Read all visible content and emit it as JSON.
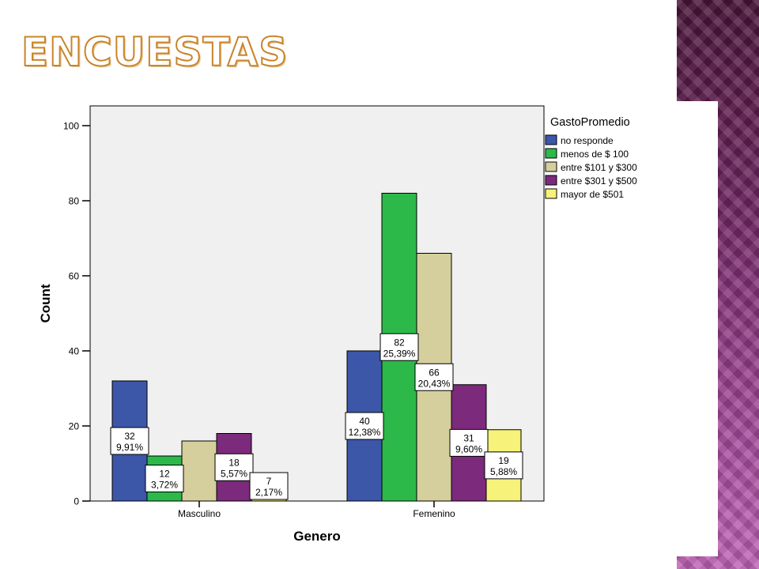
{
  "slide": {
    "title": "ENCUESTAS"
  },
  "chart_data": {
    "type": "bar",
    "xlabel": "Genero",
    "ylabel": "Count",
    "ylim": [
      0,
      100
    ],
    "yticks": [
      0,
      20,
      40,
      60,
      80,
      100
    ],
    "grid": false,
    "legend_position": "top-right",
    "legend_title": "GastoPromedio",
    "categories": [
      "Masculino",
      "Femenino"
    ],
    "series": [
      {
        "name": "no responde",
        "color": "#3c56a8",
        "values": [
          32,
          40
        ],
        "labels": [
          "9,91%",
          "12,38%"
        ]
      },
      {
        "name": "menos de $ 100",
        "color": "#2db84a",
        "values": [
          12,
          82
        ],
        "labels": [
          "3,72%",
          "25,39%"
        ]
      },
      {
        "name": "entre $101 y $300",
        "color": "#d4cf9c",
        "values": [
          16,
          66
        ],
        "labels": [
          null,
          "20,43%"
        ]
      },
      {
        "name": "entre $301 y $500",
        "color": "#7c2a7c",
        "values": [
          18,
          31
        ],
        "labels": [
          "5,57%",
          "9,60%"
        ]
      },
      {
        "name": "mayor de $501",
        "color": "#f6f27a",
        "values": [
          7,
          19
        ],
        "labels": [
          "2,17%",
          "5,88%"
        ]
      }
    ]
  }
}
